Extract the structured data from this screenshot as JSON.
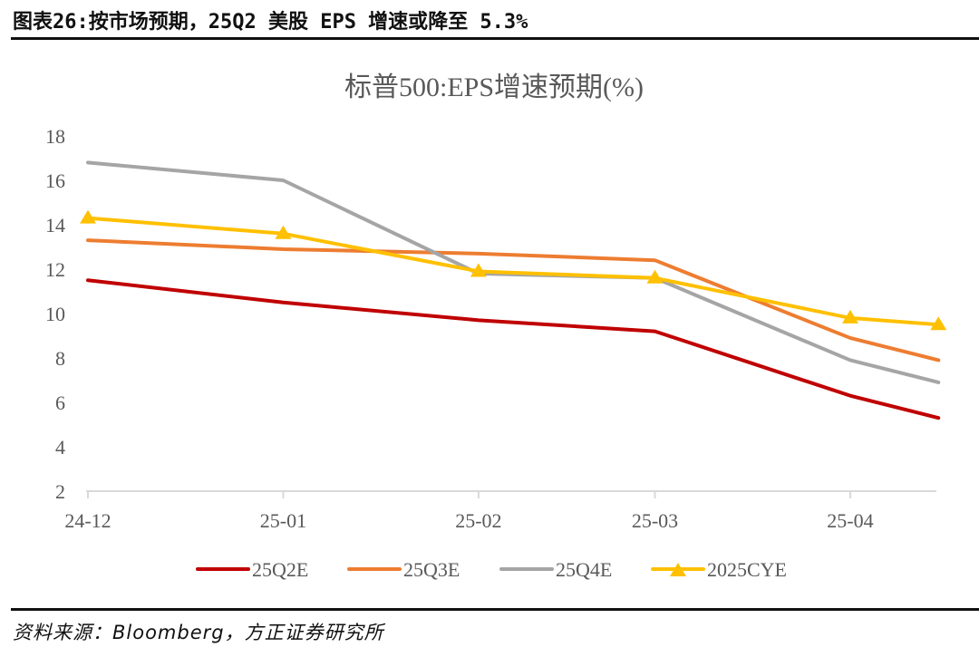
{
  "figure_title": "图表26:按市场预期，25Q2 美股 EPS 增速或降至 5.3%",
  "source": "资料来源：Bloomberg，方正证券研究所",
  "chart_data": {
    "type": "line",
    "title": "标普500:EPS增速预期(%)",
    "xlabel": "",
    "ylabel": "",
    "x": [
      "2024-12-01",
      "2025-01-01",
      "2025-02-01",
      "2025-03-01",
      "2025-04-01",
      "2025-04-15"
    ],
    "x_ticks": [
      {
        "date": "2024-12-01",
        "label": "24-12"
      },
      {
        "date": "2025-01-01",
        "label": "25-01"
      },
      {
        "date": "2025-02-01",
        "label": "25-02"
      },
      {
        "date": "2025-03-01",
        "label": "25-03"
      },
      {
        "date": "2025-04-01",
        "label": "25-04"
      }
    ],
    "ylim": [
      2,
      18
    ],
    "y_ticks": [
      2,
      4,
      6,
      8,
      10,
      12,
      14,
      16,
      18
    ],
    "grid": false,
    "legend_position": "bottom",
    "series": [
      {
        "name": "25Q2E",
        "color": "#C00000",
        "marker": "none",
        "values": [
          11.5,
          10.5,
          9.7,
          9.2,
          6.3,
          5.3
        ]
      },
      {
        "name": "25Q3E",
        "color": "#ED7D31",
        "marker": "none",
        "values": [
          13.3,
          12.9,
          12.7,
          12.4,
          8.9,
          7.9
        ]
      },
      {
        "name": "25Q4E",
        "color": "#A5A5A5",
        "marker": "none",
        "values": [
          16.8,
          16.0,
          11.8,
          11.6,
          7.9,
          6.9
        ]
      },
      {
        "name": "2025CYE",
        "color": "#FFC000",
        "marker": "triangle",
        "values": [
          14.3,
          13.6,
          11.9,
          11.6,
          9.8,
          9.5
        ]
      }
    ]
  }
}
